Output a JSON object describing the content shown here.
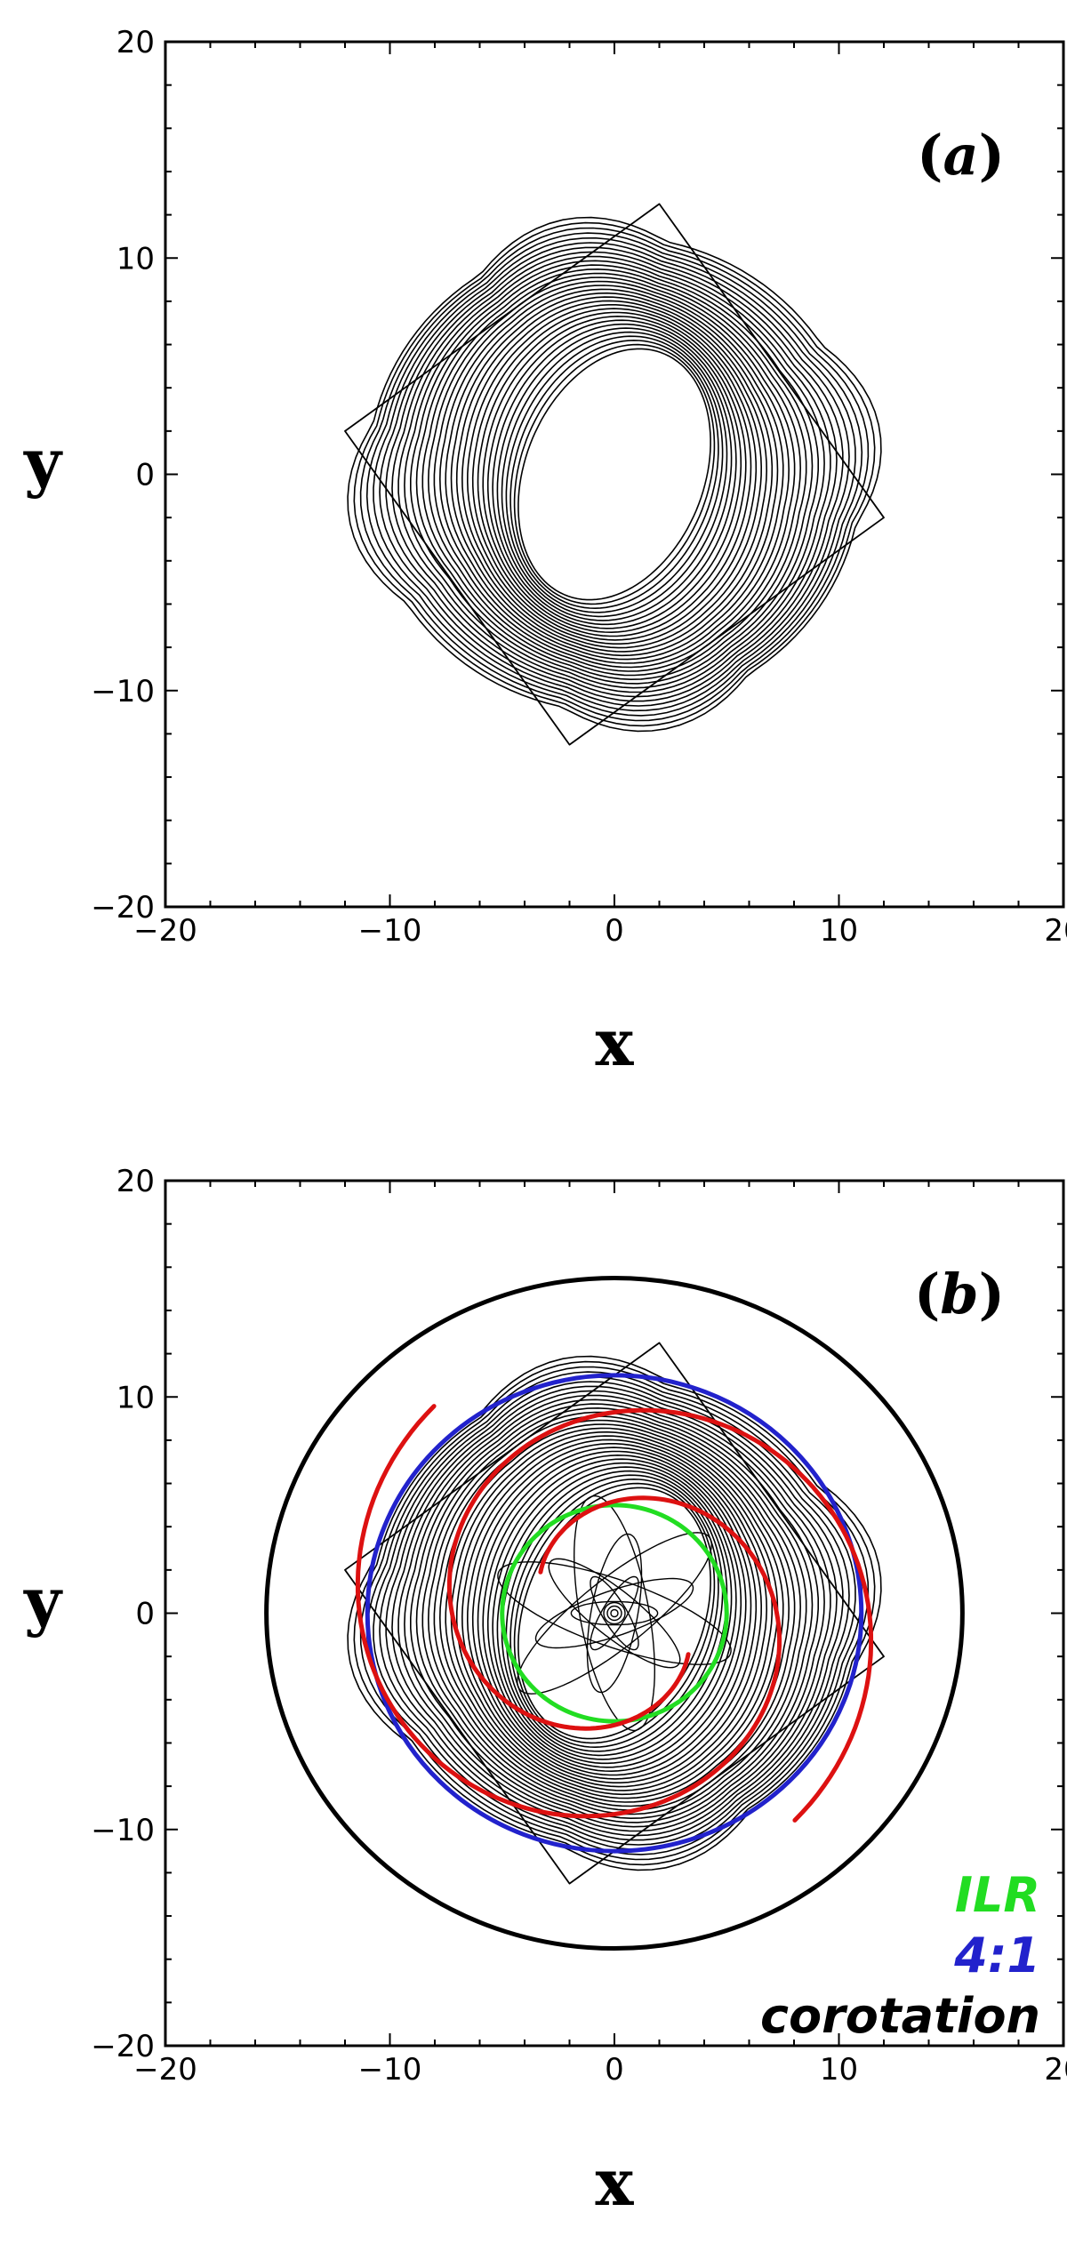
{
  "chart_data": [
    {
      "type": "line",
      "panel_label_open": "(",
      "panel_label_letter": "a",
      "panel_label_close": ")",
      "xlabel": "x",
      "ylabel": "y",
      "xlim": [
        -20,
        20
      ],
      "ylim": [
        -20,
        20
      ],
      "major_ticks": [
        -20,
        -10,
        0,
        10,
        20
      ],
      "tick_labels": [
        "−20",
        "−10",
        "0",
        "10",
        "20"
      ],
      "orbit": {
        "color": "#000000",
        "inner_semi_axes": [
          4,
          6
        ],
        "outer_radius": 11,
        "loops": 32,
        "bar_angle_deg": 0
      },
      "envelope_corners": [
        [
          12,
          -2
        ],
        [
          2,
          12.5
        ],
        [
          -12,
          2
        ],
        [
          -2,
          -12.5
        ]
      ]
    },
    {
      "type": "line",
      "panel_label_open": "(",
      "panel_label_letter": "b",
      "panel_label_close": ")",
      "xlabel": "x",
      "ylabel": "y",
      "xlim": [
        -20,
        20
      ],
      "ylim": [
        -20,
        20
      ],
      "major_ticks": [
        -20,
        -10,
        0,
        10,
        20
      ],
      "tick_labels": [
        "−20",
        "−10",
        "0",
        "10",
        "20"
      ],
      "orbit": {
        "color": "#000000",
        "inner_semi_axes": [
          4,
          6
        ],
        "outer_radius": 11,
        "loops": 32,
        "bar_angle_deg": 0
      },
      "envelope_corners": [
        [
          12,
          -2
        ],
        [
          2,
          12.5
        ],
        [
          -12,
          2
        ],
        [
          -2,
          -12.5
        ]
      ],
      "central_rosette": {
        "radius": 5.5,
        "loops": 9
      },
      "resonances": [
        {
          "name": "ILR",
          "radius": 5.0,
          "color": "#22dd22"
        },
        {
          "name": "4:1",
          "radius": 11.0,
          "color": "#2222cc"
        },
        {
          "name": "corotation",
          "radius": 15.5,
          "color": "#000000"
        }
      ],
      "spiral_arms": {
        "color": "#dd1111",
        "arms": [
          {
            "theta_start_deg": 150,
            "theta_end_deg": -230,
            "r_start": 3.8,
            "r_end": 12.5
          },
          {
            "theta_start_deg": -30,
            "theta_end_deg": -410,
            "r_start": 3.8,
            "r_end": 12.5
          }
        ]
      }
    }
  ]
}
